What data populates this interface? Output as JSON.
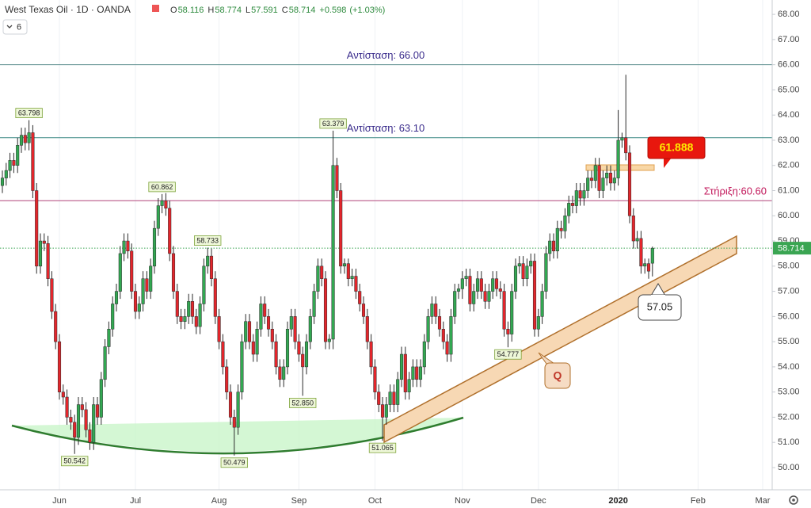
{
  "chart_data": {
    "type": "candlestick",
    "title": "West Texas Oil · 1D · OANDA",
    "ohlc_letters": [
      "O",
      "H",
      "L",
      "C"
    ],
    "change": {
      "value": 0.598,
      "label": "+0.598"
    },
    "change_percent": "(+1.03%)",
    "indicator_count": 6,
    "up_color": "#33a852",
    "down_color": "#e3262c",
    "candles": [
      [
        61.2,
        61.8,
        60.9,
        61.5
      ],
      [
        61.5,
        62.1,
        61.2,
        61.8
      ],
      [
        61.8,
        62.5,
        61.5,
        62.2
      ],
      [
        62.2,
        62.5,
        61.7,
        62.0
      ],
      [
        62.0,
        63.1,
        61.7,
        62.8
      ],
      [
        62.8,
        63.5,
        62.5,
        63.2
      ],
      [
        63.2,
        63.5,
        62.6,
        62.9
      ],
      [
        62.9,
        63.798,
        62.6,
        63.3
      ],
      [
        63.3,
        63.6,
        60.7,
        61.0
      ],
      [
        61.0,
        61.3,
        57.7,
        58.0
      ],
      [
        58.0,
        59.3,
        57.7,
        59.0
      ],
      [
        59.0,
        59.3,
        58.6,
        58.9
      ],
      [
        58.9,
        59.2,
        57.2,
        57.5
      ],
      [
        57.5,
        57.8,
        55.9,
        56.2
      ],
      [
        56.2,
        56.5,
        54.7,
        55.0
      ],
      [
        55.0,
        55.3,
        52.7,
        53.0
      ],
      [
        53.0,
        53.3,
        52.5,
        52.8
      ],
      [
        52.8,
        53.1,
        51.7,
        52.0
      ],
      [
        52.0,
        52.3,
        51.5,
        51.8
      ],
      [
        51.8,
        52.1,
        50.542,
        51.2
      ],
      [
        51.2,
        52.8,
        50.9,
        52.5
      ],
      [
        52.5,
        52.8,
        52.0,
        52.3
      ],
      [
        52.3,
        52.6,
        51.2,
        51.5
      ],
      [
        51.5,
        51.8,
        50.7,
        51.0
      ],
      [
        51.0,
        52.8,
        50.7,
        52.5
      ],
      [
        52.5,
        52.8,
        51.7,
        52.0
      ],
      [
        52.0,
        53.8,
        51.7,
        53.5
      ],
      [
        53.5,
        55.1,
        53.2,
        54.8
      ],
      [
        54.8,
        55.8,
        54.5,
        55.5
      ],
      [
        55.5,
        56.8,
        55.2,
        56.5
      ],
      [
        56.5,
        57.3,
        56.2,
        57.0
      ],
      [
        57.0,
        58.8,
        56.7,
        58.5
      ],
      [
        58.5,
        59.3,
        58.2,
        59.0
      ],
      [
        59.0,
        59.3,
        58.3,
        58.6
      ],
      [
        58.6,
        58.9,
        56.7,
        57.0
      ],
      [
        57.0,
        57.3,
        55.9,
        56.2
      ],
      [
        56.2,
        56.8,
        55.9,
        56.5
      ],
      [
        56.5,
        57.8,
        56.2,
        57.5
      ],
      [
        57.5,
        57.8,
        56.7,
        57.0
      ],
      [
        57.0,
        58.3,
        56.7,
        58.0
      ],
      [
        58.0,
        59.8,
        57.7,
        59.5
      ],
      [
        59.5,
        60.7,
        59.2,
        60.4
      ],
      [
        60.4,
        60.862,
        60.1,
        60.6
      ],
      [
        60.6,
        60.9,
        60.0,
        60.3
      ],
      [
        60.3,
        60.6,
        58.2,
        58.5
      ],
      [
        58.5,
        58.8,
        56.7,
        57.0
      ],
      [
        57.0,
        57.3,
        55.7,
        56.0
      ],
      [
        56.0,
        56.3,
        55.5,
        55.8
      ],
      [
        55.8,
        56.3,
        55.5,
        56.0
      ],
      [
        56.0,
        56.9,
        55.7,
        56.6
      ],
      [
        56.6,
        56.9,
        55.7,
        56.0
      ],
      [
        56.0,
        56.3,
        55.3,
        55.6
      ],
      [
        55.6,
        56.8,
        55.3,
        56.5
      ],
      [
        56.5,
        58.3,
        56.2,
        58.0
      ],
      [
        58.0,
        58.733,
        57.7,
        58.4
      ],
      [
        58.4,
        58.7,
        57.2,
        57.5
      ],
      [
        57.5,
        57.8,
        55.7,
        56.0
      ],
      [
        56.0,
        56.3,
        54.7,
        55.0
      ],
      [
        55.0,
        55.3,
        53.7,
        54.0
      ],
      [
        54.0,
        54.3,
        52.7,
        53.0
      ],
      [
        53.0,
        53.3,
        51.7,
        52.0
      ],
      [
        52.0,
        52.3,
        50.479,
        51.6
      ],
      [
        51.6,
        53.3,
        51.3,
        53.0
      ],
      [
        53.0,
        55.3,
        52.7,
        55.0
      ],
      [
        55.0,
        56.1,
        54.7,
        55.8
      ],
      [
        55.8,
        56.1,
        54.7,
        55.0
      ],
      [
        55.0,
        55.3,
        54.2,
        54.5
      ],
      [
        54.5,
        55.8,
        54.2,
        55.5
      ],
      [
        55.5,
        56.8,
        55.2,
        56.5
      ],
      [
        56.5,
        56.8,
        55.7,
        56.0
      ],
      [
        56.0,
        56.3,
        55.2,
        55.5
      ],
      [
        55.5,
        55.8,
        54.7,
        55.0
      ],
      [
        55.0,
        55.3,
        53.7,
        54.0
      ],
      [
        54.0,
        54.3,
        53.2,
        53.5
      ],
      [
        53.5,
        54.3,
        53.2,
        54.0
      ],
      [
        54.0,
        55.8,
        53.7,
        55.5
      ],
      [
        55.5,
        56.3,
        55.2,
        56.0
      ],
      [
        56.0,
        56.3,
        54.7,
        55.0
      ],
      [
        55.0,
        55.3,
        54.2,
        54.5
      ],
      [
        54.5,
        54.8,
        {
          "value": 52.85,
          "label": "52.850"
        },
        54.0
      ],
      [
        54.0,
        55.3,
        53.7,
        55.0
      ],
      [
        55.0,
        56.3,
        54.7,
        56.0
      ],
      [
        56.0,
        57.3,
        55.7,
        57.0
      ],
      [
        57.0,
        58.3,
        56.7,
        58.0
      ],
      [
        58.0,
        58.3,
        57.2,
        57.5
      ],
      [
        57.5,
        57.8,
        54.7,
        55.0
      ],
      [
        55.0,
        55.3,
        54.7,
        55.1
      ],
      [
        55.1,
        63.379,
        54.7,
        62.0
      ],
      [
        62.0,
        62.3,
        60.7,
        61.0
      ],
      [
        61.0,
        61.3,
        57.7,
        58.0
      ],
      [
        58.0,
        58.3,
        57.7,
        58.1
      ],
      [
        58.1,
        58.3,
        57.2,
        57.5
      ],
      [
        57.5,
        57.9,
        57.2,
        57.6
      ],
      [
        57.6,
        57.9,
        56.7,
        57.0
      ],
      [
        57.0,
        57.3,
        56.2,
        56.5
      ],
      [
        56.5,
        56.8,
        55.7,
        56.0
      ],
      [
        56.0,
        56.3,
        54.7,
        55.0
      ],
      [
        55.0,
        55.3,
        53.7,
        54.0
      ],
      [
        54.0,
        54.3,
        52.7,
        53.0
      ],
      [
        53.0,
        53.3,
        52.2,
        52.5
      ],
      [
        52.5,
        52.8,
        51.065,
        52.0
      ],
      [
        52.0,
        52.8,
        51.7,
        52.5
      ],
      [
        52.5,
        53.3,
        52.2,
        53.0
      ],
      [
        53.0,
        53.3,
        52.2,
        52.5
      ],
      [
        52.5,
        53.8,
        52.2,
        53.5
      ],
      [
        53.5,
        54.8,
        53.2,
        54.5
      ],
      [
        54.5,
        54.8,
        52.7,
        53.0
      ],
      [
        53.0,
        53.8,
        52.7,
        53.5
      ],
      [
        53.5,
        54.3,
        53.2,
        54.0
      ],
      [
        54.0,
        54.3,
        53.2,
        53.5
      ],
      [
        53.5,
        54.3,
        53.2,
        54.0
      ],
      [
        54.0,
        55.3,
        53.7,
        55.0
      ],
      [
        55.0,
        56.3,
        54.7,
        56.0
      ],
      [
        56.0,
        56.8,
        55.7,
        56.5
      ],
      [
        56.5,
        56.8,
        55.7,
        56.0
      ],
      [
        56.0,
        56.3,
        55.2,
        55.5
      ],
      [
        55.5,
        55.8,
        54.7,
        55.0
      ],
      [
        55.0,
        55.3,
        54.2,
        54.5
      ],
      [
        54.5,
        56.3,
        54.2,
        56.0
      ],
      [
        56.0,
        57.3,
        55.7,
        57.0
      ],
      [
        57.0,
        57.3,
        56.7,
        57.1
      ],
      [
        57.1,
        57.8,
        56.7,
        57.5
      ],
      [
        57.5,
        57.9,
        57.2,
        57.6
      ],
      [
        57.6,
        57.9,
        56.2,
        56.5
      ],
      [
        56.5,
        57.3,
        56.2,
        57.0
      ],
      [
        57.0,
        57.8,
        56.7,
        57.5
      ],
      [
        57.5,
        57.8,
        56.7,
        57.0
      ],
      [
        57.0,
        57.3,
        56.3,
        56.6
      ],
      [
        56.6,
        57.3,
        56.3,
        57.0
      ],
      [
        57.0,
        57.8,
        56.7,
        57.5
      ],
      [
        57.5,
        57.8,
        56.8,
        57.1
      ],
      [
        57.1,
        57.4,
        56.7,
        57.0
      ],
      [
        57.0,
        57.3,
        55.2,
        55.5
      ],
      [
        55.5,
        55.8,
        54.777,
        55.3
      ],
      [
        55.3,
        57.3,
        55.0,
        57.0
      ],
      [
        57.0,
        58.3,
        56.7,
        58.0
      ],
      [
        58.0,
        58.4,
        57.7,
        58.1
      ],
      [
        58.1,
        58.4,
        57.2,
        57.5
      ],
      [
        57.5,
        58.3,
        57.2,
        58.0
      ],
      [
        58.0,
        58.5,
        57.7,
        58.2
      ],
      [
        58.2,
        58.5,
        55.2,
        55.5
      ],
      [
        55.5,
        56.3,
        55.2,
        56.0
      ],
      [
        56.0,
        57.3,
        55.7,
        57.0
      ],
      [
        57.0,
        58.8,
        56.7,
        58.5
      ],
      [
        58.5,
        59.3,
        58.2,
        59.0
      ],
      [
        59.0,
        59.3,
        58.3,
        58.6
      ],
      [
        58.6,
        59.8,
        58.3,
        59.5
      ],
      [
        59.5,
        59.8,
        59.1,
        59.4
      ],
      [
        59.4,
        60.3,
        59.1,
        60.0
      ],
      [
        60.0,
        60.8,
        59.7,
        60.5
      ],
      [
        60.5,
        60.8,
        60.1,
        60.4
      ],
      [
        60.4,
        61.3,
        60.1,
        61.0
      ],
      [
        61.0,
        61.3,
        60.4,
        60.7
      ],
      [
        60.7,
        61.3,
        60.4,
        61.0
      ],
      [
        61.0,
        61.8,
        60.7,
        61.5
      ],
      [
        61.5,
        61.8,
        61.1,
        61.4
      ],
      [
        61.4,
        62.3,
        61.1,
        62.0
      ],
      [
        62.0,
        62.3,
        60.7,
        61.0
      ],
      [
        61.0,
        61.8,
        60.7,
        61.5
      ],
      [
        61.5,
        62.0,
        61.2,
        61.7
      ],
      [
        61.7,
        62.0,
        61.0,
        61.3
      ],
      [
        61.3,
        61.8,
        61.0,
        61.5
      ],
      [
        61.5,
        64.2,
        61.2,
        63.0
      ],
      [
        63.0,
        63.3,
        62.7,
        63.1
      ],
      [
        63.1,
        65.6,
        62.2,
        62.5
      ],
      [
        62.5,
        62.8,
        59.7,
        60.0
      ],
      [
        60.0,
        60.3,
        58.7,
        59.0
      ],
      [
        59.0,
        59.4,
        58.7,
        59.1
      ],
      [
        59.1,
        59.4,
        57.7,
        58.0
      ],
      [
        58.0,
        58.3,
        57.7,
        58.1
      ],
      [
        58.1,
        58.3,
        57.5,
        57.8
      ],
      [
        58.116,
        58.774,
        57.591,
        58.714
      ]
    ],
    "pivot_highs": [
      7,
      42,
      54,
      87
    ],
    "pivot_lows": [
      19,
      61,
      79,
      100,
      133
    ],
    "levels": [
      {
        "label": "Αντίσταση: 66.00",
        "value": 66,
        "color": "#5e8f8f",
        "text_color": "#3a2c8c"
      },
      {
        "label": "Αντίσταση: 63.10",
        "value": 63.1,
        "color": "#3f8a86",
        "text_color": "#3a2c8c"
      },
      {
        "label": "Στήριξη:60.60",
        "value": 60.6,
        "color": "#b0457a",
        "text_color": "#c2185b"
      }
    ],
    "callouts": {
      "target": 61.888,
      "touch": 57.05,
      "pattern": "Q"
    },
    "ylim": [
      49.37,
      68.57
    ],
    "yticks": [
      {
        "value": 50,
        "label": "50.00"
      },
      {
        "value": 51,
        "label": "51.00"
      },
      {
        "value": 52,
        "label": "52.00"
      },
      {
        "value": 53,
        "label": "53.00"
      },
      {
        "value": 54,
        "label": "54.00"
      },
      {
        "value": 55,
        "label": "55.00"
      },
      {
        "value": 56,
        "label": "56.00"
      },
      {
        "value": 57,
        "label": "57.00"
      },
      {
        "value": 58,
        "label": "58.00"
      },
      {
        "value": 59,
        "label": "59.00"
      },
      {
        "value": 60,
        "label": "60.00"
      },
      {
        "value": 61,
        "label": "61.00"
      },
      {
        "value": 62,
        "label": "62.00"
      },
      {
        "value": 63,
        "label": "63.00"
      },
      {
        "value": 64,
        "label": "64.00"
      },
      {
        "value": 65,
        "label": "65.00"
      },
      {
        "value": 66,
        "label": "66.00"
      },
      {
        "value": 67,
        "label": "67.00"
      },
      {
        "value": 68,
        "label": "68.00"
      }
    ],
    "xlim": [
      -0.625,
      202.5
    ],
    "xticks": [
      {
        "value": 15,
        "label": "Jun"
      },
      {
        "value": 35,
        "label": "Jul"
      },
      {
        "value": 57,
        "label": "Aug"
      },
      {
        "value": 78,
        "label": "Sep"
      },
      {
        "value": 98,
        "label": "Oct"
      },
      {
        "value": 121,
        "label": "Nov"
      },
      {
        "value": 141,
        "label": "Dec"
      },
      {
        "value": 162,
        "label": "2020"
      },
      {
        "value": 183,
        "label": "Feb"
      },
      {
        "value": 200,
        "label": "Mar"
      }
    ],
    "grid": true
  }
}
